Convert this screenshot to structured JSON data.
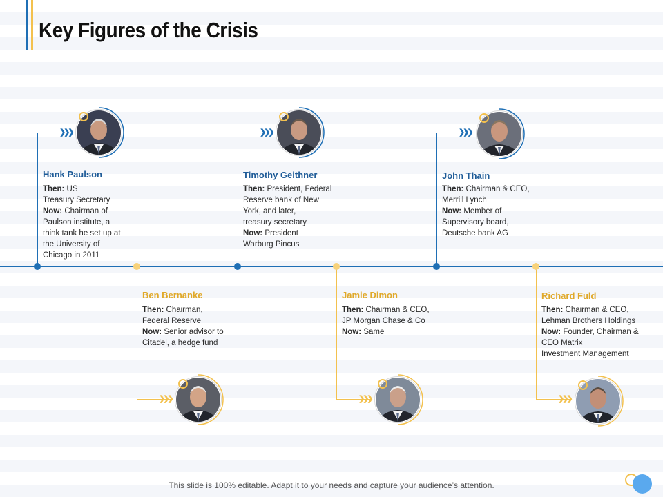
{
  "slide": {
    "title": "Key Figures of the Crisis"
  },
  "figures": [
    {
      "name": "Hank Paulson",
      "theme": "blue",
      "then_label": "Then:",
      "then_lines": [
        "US",
        "Treasury Secretary"
      ],
      "now_label": "Now:",
      "now_lines": [
        "Chairman of",
        "Paulson institute, a",
        "think tank he set up at",
        "the University of",
        "Chicago in 2011"
      ]
    },
    {
      "name": "Ben Bernanke",
      "theme": "gold",
      "then_label": "Then:",
      "then_lines": [
        "Chairman,",
        "Federal Reserve"
      ],
      "now_label": "Now:",
      "now_lines": [
        "Senior advisor to",
        "Citadel, a hedge fund"
      ]
    },
    {
      "name": "Timothy Geithner",
      "theme": "blue",
      "then_label": "Then:",
      "then_lines": [
        "President, Federal",
        "Reserve  bank of New",
        "York, and later,",
        "treasury secretary"
      ],
      "now_label": "Now:",
      "now_lines": [
        "President",
        "Warburg Pincus"
      ]
    },
    {
      "name": "Jamie Dimon",
      "theme": "gold",
      "then_label": "Then:",
      "then_lines": [
        "Chairman & CEO,",
        "JP Morgan Chase & Co"
      ],
      "now_label": "Now:",
      "now_lines": [
        "Same"
      ]
    },
    {
      "name": "John Thain",
      "theme": "blue",
      "then_label": "Then:",
      "then_lines": [
        "Chairman & CEO,",
        "Merrill  Lynch"
      ],
      "now_label": "Now:",
      "now_lines": [
        "Member  of",
        "Supervisory board,",
        "Deutsche bank AG"
      ]
    },
    {
      "name": "Richard  Fuld",
      "theme": "gold",
      "then_label": "Then:",
      "then_lines": [
        "Chairman & CEO,",
        "Lehman Brothers Holdings"
      ],
      "now_label": "Now:",
      "now_lines": [
        "Founder, Chairman &",
        "CEO Matrix",
        "Investment Management"
      ]
    }
  ],
  "footer": {
    "text": "This slide is 100% editable. Adapt it to your needs and capture your audience’s attention."
  },
  "colors": {
    "blue": "#1f6fb5",
    "gold": "#f3c14e"
  },
  "icons": {
    "chevron": "double-chevron-right-icon"
  }
}
